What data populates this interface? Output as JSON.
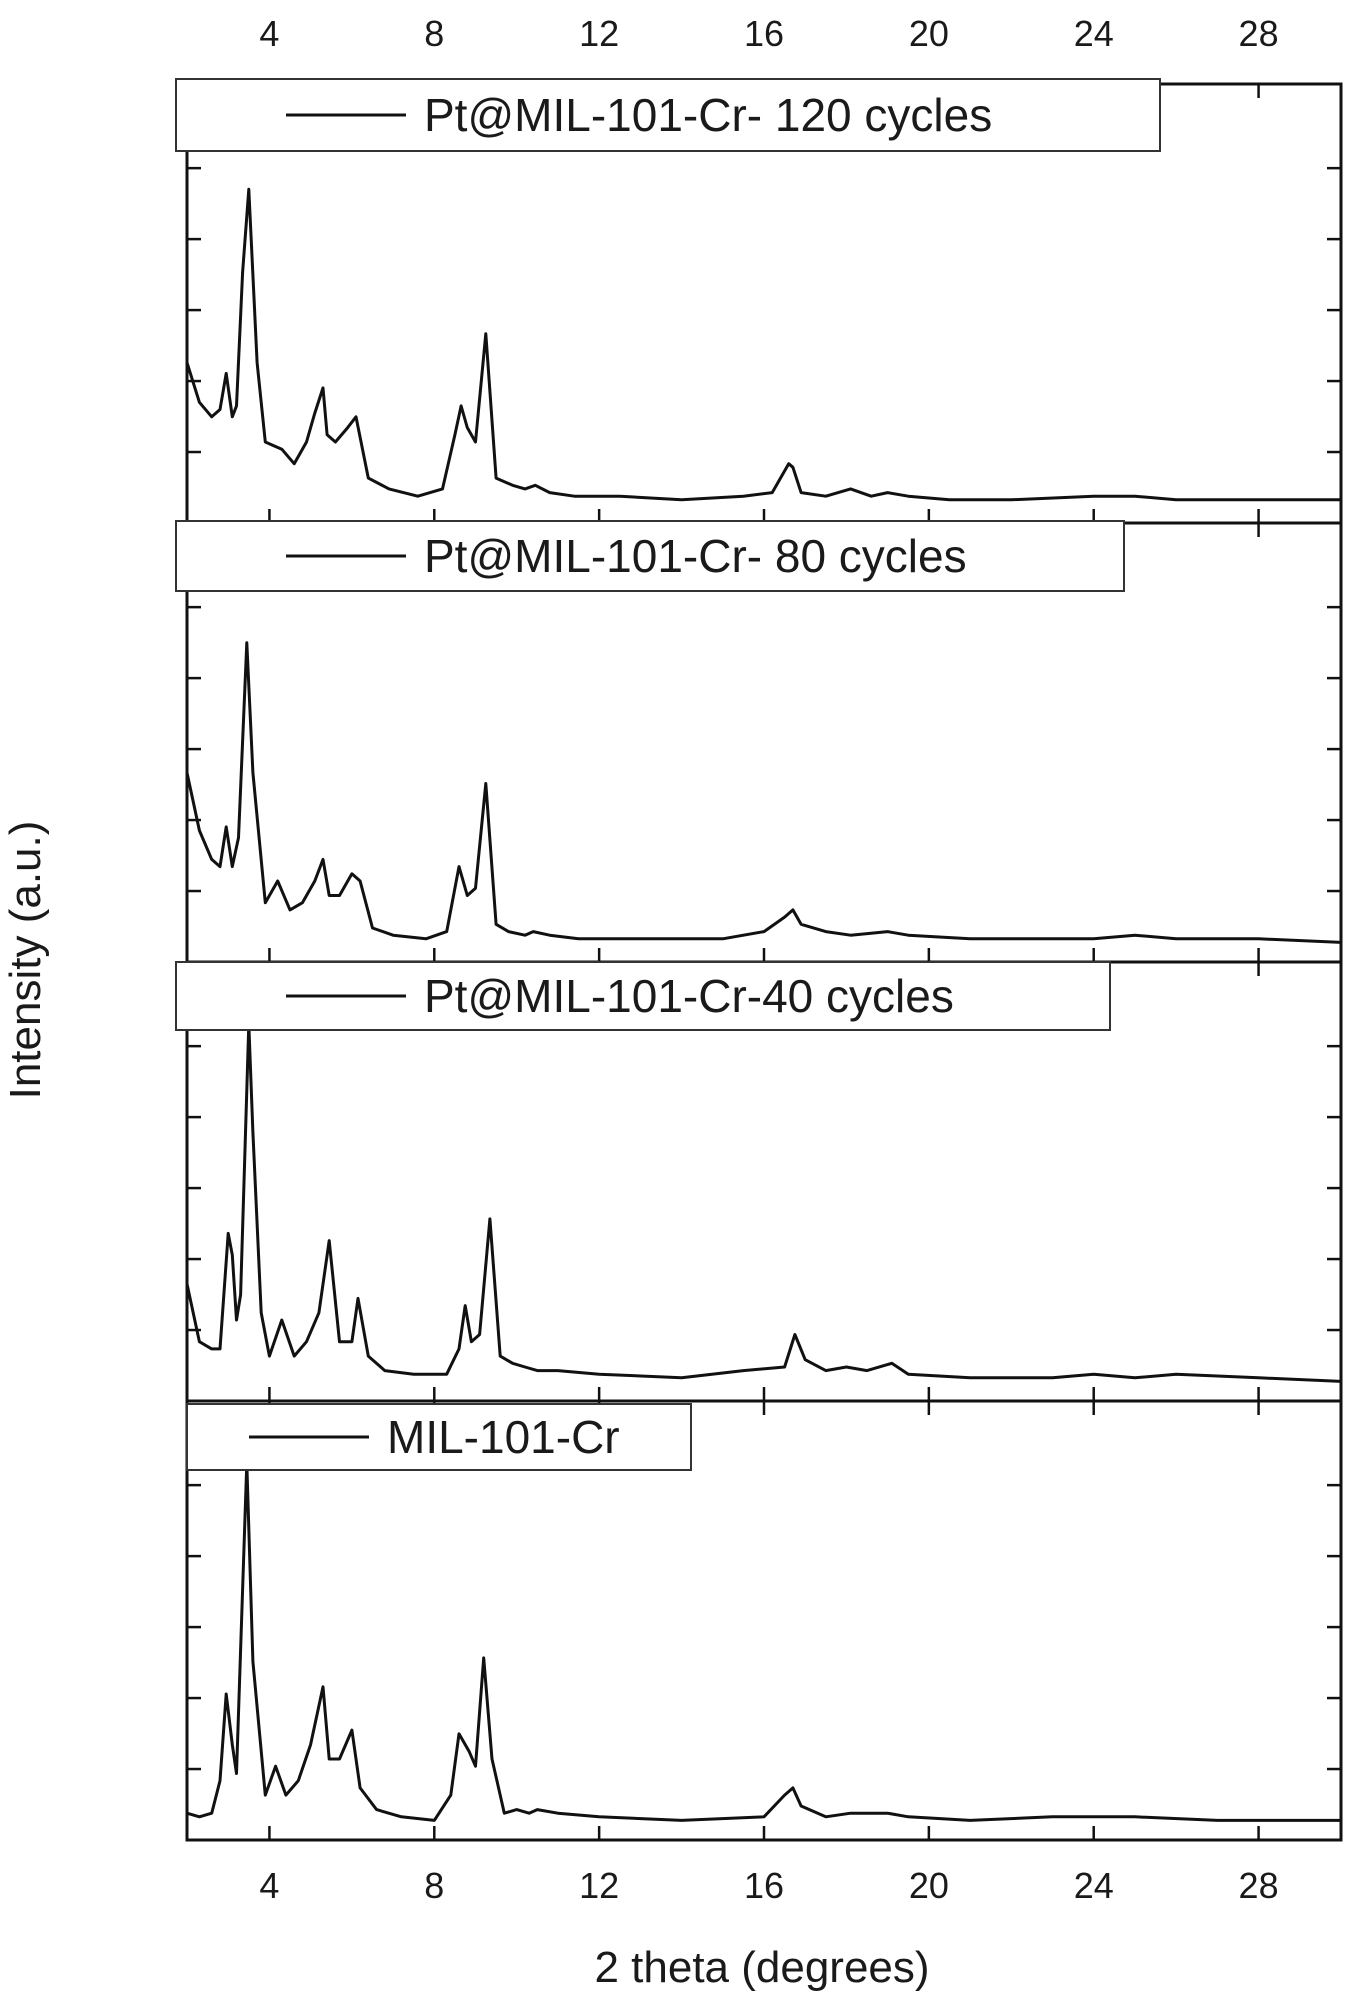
{
  "chart_data": {
    "type": "line",
    "xlabel": "2 theta (degrees)",
    "ylabel": "Intensity (a.u.)",
    "xlim": [
      2,
      30
    ],
    "xticks": [
      4,
      8,
      12,
      16,
      20,
      24,
      28
    ],
    "ylim": [
      0,
      100
    ],
    "grid": false,
    "legend_position": "top of each panel",
    "line_color": "#111111",
    "panels": [
      {
        "legend": "Pt@MIL-101-Cr- 120 cycles",
        "series": [
          {
            "name": "Pt@MIL-101-Cr- 120 cycles",
            "x": [
              2.0,
              2.3,
              2.6,
              2.8,
              2.95,
              3.1,
              3.2,
              3.35,
              3.5,
              3.7,
              3.9,
              4.1,
              4.3,
              4.6,
              4.9,
              5.1,
              5.3,
              5.4,
              5.6,
              5.9,
              6.1,
              6.4,
              6.9,
              7.6,
              8.2,
              8.5,
              8.65,
              8.8,
              9.0,
              9.25,
              9.5,
              9.9,
              10.2,
              10.45,
              10.8,
              11.4,
              12.5,
              14,
              15.5,
              16.2,
              16.6,
              16.7,
              16.9,
              17.5,
              18.1,
              18.6,
              19.0,
              19.5,
              20.5,
              22,
              24,
              25,
              26,
              28,
              30
            ],
            "y": [
              40,
              29,
              25,
              27,
              37,
              25,
              28,
              65,
              88,
              40,
              18,
              17,
              16,
              12,
              18,
              26,
              33,
              20,
              18,
              22,
              25,
              8,
              5,
              3,
              5,
              20,
              28,
              22,
              18,
              48,
              8,
              6,
              5,
              6,
              4,
              3,
              3,
              2,
              3,
              4,
              12,
              11,
              4,
              3,
              5,
              3,
              4,
              3,
              2,
              2,
              3,
              3,
              2,
              2,
              2
            ]
          }
        ]
      },
      {
        "legend": "Pt@MIL-101-Cr- 80 cycles",
        "series": [
          {
            "name": "Pt@MIL-101-Cr- 80 cycles",
            "x": [
              2.0,
              2.3,
              2.6,
              2.8,
              2.95,
              3.1,
              3.25,
              3.45,
              3.6,
              3.9,
              4.2,
              4.5,
              4.8,
              5.1,
              5.3,
              5.45,
              5.7,
              6.0,
              6.2,
              6.5,
              7.0,
              7.8,
              8.3,
              8.6,
              8.8,
              9.0,
              9.25,
              9.5,
              9.8,
              10.2,
              10.4,
              10.8,
              11.5,
              13,
              15,
              16.0,
              16.5,
              16.7,
              16.9,
              17.5,
              18.1,
              19.0,
              19.5,
              21,
              23,
              24,
              25,
              26,
              28,
              30
            ],
            "y": [
              48,
              32,
              24,
              22,
              33,
              22,
              30,
              84,
              48,
              12,
              18,
              10,
              12,
              18,
              24,
              14,
              14,
              20,
              18,
              5,
              3,
              2,
              4,
              22,
              14,
              16,
              45,
              6,
              4,
              3,
              4,
              3,
              2,
              2,
              2,
              4,
              8,
              10,
              6,
              4,
              3,
              4,
              3,
              2,
              2,
              2,
              3,
              2,
              2,
              1
            ]
          }
        ]
      },
      {
        "legend": "Pt@MIL-101-Cr-40 cycles",
        "series": [
          {
            "name": "Pt@MIL-101-Cr-40 cycles",
            "x": [
              2.0,
              2.3,
              2.6,
              2.8,
              3.0,
              3.1,
              3.2,
              3.3,
              3.5,
              3.6,
              3.8,
              4.0,
              4.3,
              4.6,
              4.9,
              5.2,
              5.45,
              5.7,
              6.0,
              6.15,
              6.4,
              6.8,
              7.5,
              8.3,
              8.6,
              8.75,
              8.9,
              9.1,
              9.35,
              9.6,
              9.9,
              10.2,
              10.5,
              11,
              12,
              14,
              15.5,
              16.5,
              16.75,
              17.0,
              17.5,
              18.0,
              18.5,
              19.1,
              19.5,
              21,
              23,
              24,
              25,
              26,
              28,
              30
            ],
            "y": [
              28,
              12,
              10,
              10,
              42,
              36,
              18,
              25,
              100,
              70,
              20,
              8,
              18,
              8,
              12,
              20,
              40,
              12,
              12,
              24,
              8,
              4,
              3,
              3,
              10,
              22,
              12,
              14,
              46,
              8,
              6,
              5,
              4,
              4,
              3,
              2,
              4,
              5,
              14,
              7,
              4,
              5,
              4,
              6,
              3,
              2,
              2,
              3,
              2,
              3,
              2,
              1
            ]
          }
        ]
      },
      {
        "legend": "MIL-101-Cr",
        "series": [
          {
            "name": "MIL-101-Cr",
            "x": [
              2.0,
              2.3,
              2.6,
              2.8,
              2.95,
              3.1,
              3.2,
              3.45,
              3.6,
              3.9,
              4.15,
              4.4,
              4.7,
              5.0,
              5.3,
              5.45,
              5.7,
              6.0,
              6.2,
              6.6,
              7.2,
              8.0,
              8.4,
              8.6,
              8.85,
              9.0,
              9.2,
              9.4,
              9.7,
              10.0,
              10.3,
              10.5,
              11,
              12,
              14,
              16.0,
              16.5,
              16.7,
              16.9,
              17.5,
              18.1,
              19.0,
              19.5,
              21,
              23,
              25,
              27,
              30
            ],
            "y": [
              3,
              2,
              3,
              12,
              36,
              22,
              14,
              100,
              45,
              8,
              16,
              8,
              12,
              22,
              38,
              18,
              18,
              26,
              10,
              4,
              2,
              1,
              8,
              25,
              20,
              16,
              46,
              18,
              3,
              4,
              3,
              4,
              3,
              2,
              1,
              2,
              8,
              10,
              5,
              2,
              3,
              3,
              2,
              1,
              2,
              2,
              1,
              1
            ]
          }
        ]
      }
    ]
  }
}
